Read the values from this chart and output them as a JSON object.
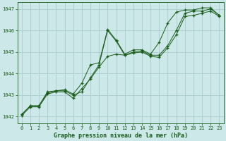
{
  "background_color": "#cce8e8",
  "plot_bg_color": "#cce8e8",
  "line_color": "#1a5c1a",
  "grid_color": "#aacccc",
  "xlabel": "Graphe pression niveau de la mer (hPa)",
  "xlabel_color": "#1a5c1a",
  "ylim": [
    1041.7,
    1047.3
  ],
  "xlim": [
    -0.5,
    23.5
  ],
  "yticks": [
    1042,
    1043,
    1044,
    1045,
    1046,
    1047
  ],
  "xticks": [
    0,
    1,
    2,
    3,
    4,
    5,
    6,
    7,
    8,
    9,
    10,
    11,
    12,
    13,
    14,
    15,
    16,
    17,
    18,
    19,
    20,
    21,
    22,
    23
  ],
  "x": [
    0,
    1,
    2,
    3,
    4,
    5,
    6,
    7,
    8,
    9,
    10,
    11,
    12,
    13,
    14,
    15,
    16,
    17,
    18,
    19,
    20,
    21,
    22,
    23
  ],
  "pressure_avg": [
    1042.1,
    1042.5,
    1042.5,
    1043.1,
    1043.2,
    1043.2,
    1043.0,
    1043.15,
    1043.8,
    1044.4,
    1046.0,
    1045.5,
    1044.85,
    1045.0,
    1045.05,
    1044.85,
    1044.85,
    1045.3,
    1046.0,
    1046.8,
    1046.9,
    1046.9,
    1047.0,
    1046.7
  ],
  "pressure_min": [
    1042.05,
    1042.45,
    1042.45,
    1043.05,
    1043.15,
    1043.15,
    1042.85,
    1043.3,
    1043.75,
    1044.3,
    1044.8,
    1044.9,
    1044.85,
    1044.95,
    1045.0,
    1044.8,
    1044.75,
    1045.2,
    1045.8,
    1046.65,
    1046.7,
    1046.8,
    1046.9,
    1046.65
  ],
  "pressure_max": [
    1042.1,
    1042.5,
    1042.5,
    1043.15,
    1043.2,
    1043.25,
    1043.05,
    1043.55,
    1044.4,
    1044.5,
    1046.05,
    1045.55,
    1044.9,
    1045.1,
    1045.1,
    1044.9,
    1045.45,
    1046.35,
    1046.85,
    1046.95,
    1046.95,
    1047.05,
    1047.05,
    1046.7
  ],
  "tick_fontsize": 5.0,
  "xlabel_fontsize": 6.0
}
